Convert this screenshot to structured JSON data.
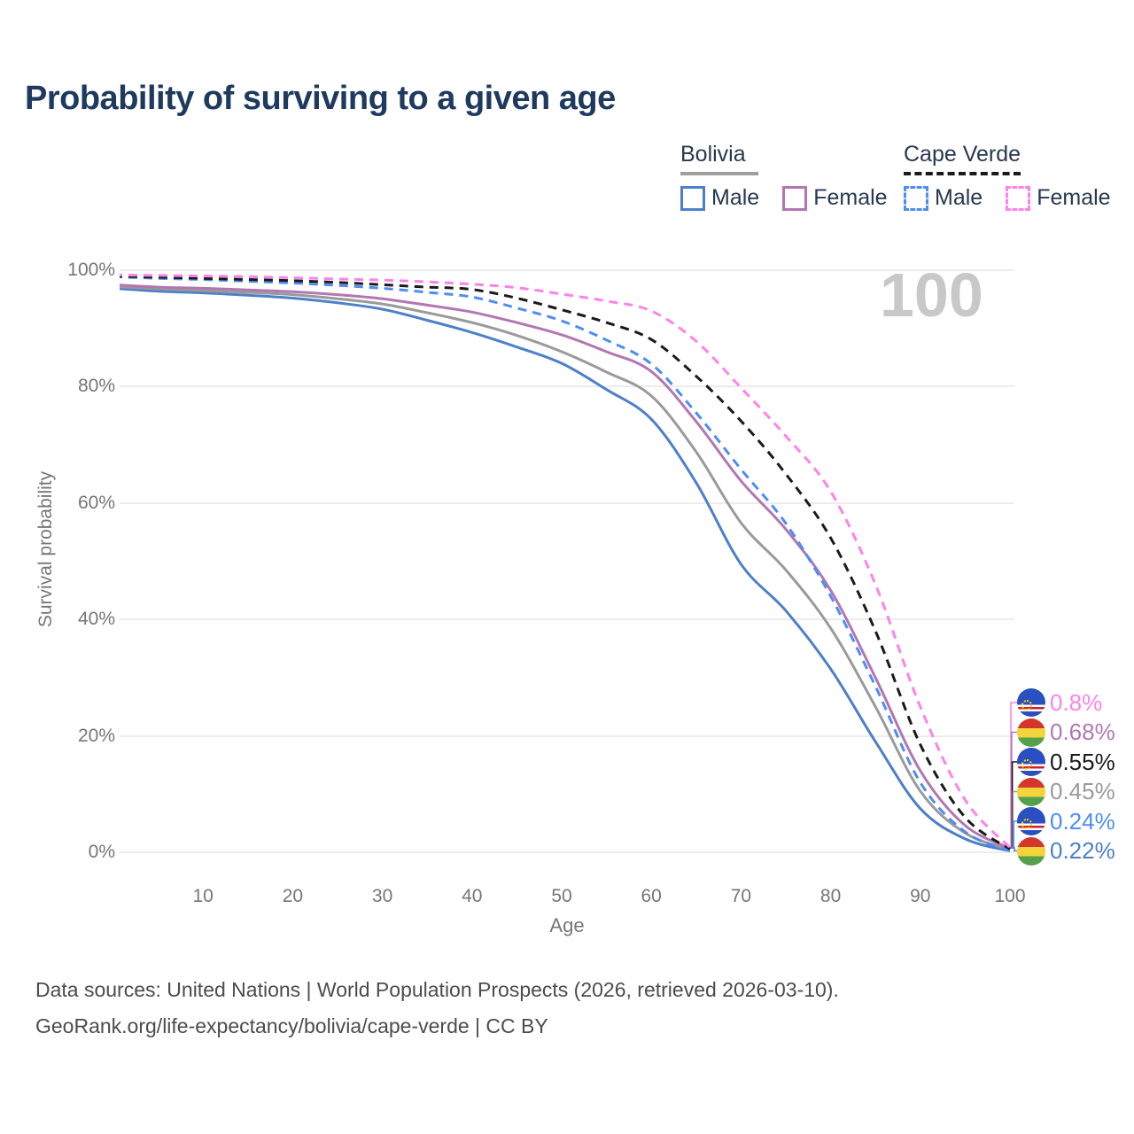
{
  "title": "Probability of surviving to a given age",
  "watermark": "100",
  "legend": {
    "groups": [
      {
        "header": "Bolivia",
        "underline_style": "solid",
        "underline_color": "#9e9e9e",
        "items": [
          {
            "label": "Male",
            "color": "#4d80c9",
            "dashed": false
          },
          {
            "label": "Female",
            "color": "#b277b2",
            "dashed": false
          }
        ]
      },
      {
        "header": "Cape Verde",
        "underline_style": "dashed",
        "underline_color": "#1a1a1a",
        "items": [
          {
            "label": "Male",
            "color": "#4d8df5",
            "dashed": true
          },
          {
            "label": "Female",
            "color": "#ff82e8",
            "dashed": true
          }
        ]
      }
    ]
  },
  "chart_data": {
    "type": "line",
    "title": "Probability of surviving to a given age",
    "xlabel": "Age",
    "ylabel": "Survival probability",
    "xlim": [
      0,
      100
    ],
    "ylim": [
      0,
      100
    ],
    "grid": "horizontal",
    "legend_position": "top-right",
    "x_ticks": [
      10,
      20,
      30,
      40,
      50,
      60,
      70,
      80,
      90,
      100
    ],
    "y_ticks": [
      "0%",
      "20%",
      "40%",
      "60%",
      "80%",
      "100%"
    ],
    "x": [
      0,
      5,
      10,
      15,
      20,
      25,
      30,
      35,
      40,
      45,
      50,
      55,
      60,
      65,
      70,
      75,
      80,
      85,
      90,
      95,
      100
    ],
    "series": [
      {
        "name": "Bolivia Male",
        "country": "Bolivia",
        "sex": "Male",
        "color": "#4d80c9",
        "dash": "solid",
        "values": [
          96.9,
          96.4,
          96.1,
          95.7,
          95.2,
          94.4,
          93.3,
          91.4,
          89.3,
          86.8,
          84.0,
          79.5,
          74.4,
          63.5,
          49.5,
          41.5,
          31.5,
          19.0,
          7.5,
          2.3,
          0.22
        ]
      },
      {
        "name": "Bolivia All",
        "country": "Bolivia",
        "sex": "All",
        "color": "#9a9a9a",
        "dash": "solid",
        "values": [
          97.2,
          96.8,
          96.5,
          96.2,
          95.8,
          95.1,
          94.2,
          92.7,
          91.0,
          88.8,
          86.0,
          82.5,
          78.4,
          68.8,
          56.6,
          48.5,
          38.5,
          25.0,
          10.5,
          3.3,
          0.45
        ]
      },
      {
        "name": "Bolivia Female",
        "country": "Bolivia",
        "sex": "Female",
        "color": "#b277b2",
        "dash": "solid",
        "values": [
          97.5,
          97.1,
          96.9,
          96.6,
          96.3,
          95.8,
          95.1,
          94.0,
          92.8,
          91.0,
          88.9,
          86.0,
          82.6,
          74.0,
          63.8,
          55.5,
          45.0,
          30.0,
          14.0,
          4.6,
          0.68
        ]
      },
      {
        "name": "Cape Verde Male",
        "country": "Cape Verde",
        "sex": "Male",
        "color": "#4d8df5",
        "dash": "dashed",
        "values": [
          98.9,
          98.6,
          98.4,
          98.1,
          97.8,
          97.4,
          96.9,
          96.2,
          95.4,
          93.5,
          91.3,
          88.0,
          83.9,
          75.5,
          65.8,
          56.5,
          44.0,
          28.5,
          12.0,
          3.5,
          0.24
        ]
      },
      {
        "name": "Cape Verde All",
        "country": "Cape Verde",
        "sex": "All",
        "color": "#1a1a1a",
        "dash": "dashed",
        "values": [
          99.0,
          98.8,
          98.6,
          98.4,
          98.2,
          97.9,
          97.5,
          97.1,
          96.7,
          95.2,
          93.2,
          91.0,
          88.1,
          81.8,
          74.1,
          65.0,
          54.0,
          38.0,
          18.5,
          6.0,
          0.55
        ]
      },
      {
        "name": "Cape Verde Female",
        "country": "Cape Verde",
        "sex": "Female",
        "color": "#ff82e8",
        "dash": "dashed",
        "values": [
          99.2,
          99.1,
          99.0,
          98.9,
          98.7,
          98.5,
          98.3,
          98.0,
          97.6,
          97.0,
          95.9,
          94.7,
          93.0,
          87.8,
          79.8,
          71.5,
          62.0,
          46.0,
          25.0,
          9.0,
          0.8
        ]
      }
    ]
  },
  "end_labels": [
    {
      "text": "0.8%",
      "color": "#ff82e8",
      "flag": "capeverde",
      "series": "Cape Verde Female"
    },
    {
      "text": "0.68%",
      "color": "#b277b2",
      "flag": "bolivia",
      "series": "Bolivia Female"
    },
    {
      "text": "0.55%",
      "color": "#1a1a1a",
      "flag": "capeverde",
      "series": "Cape Verde All"
    },
    {
      "text": "0.45%",
      "color": "#9a9a9a",
      "flag": "bolivia",
      "series": "Bolivia All"
    },
    {
      "text": "0.24%",
      "color": "#4d8df5",
      "flag": "capeverde",
      "series": "Cape Verde Male"
    },
    {
      "text": "0.22%",
      "color": "#4d80c9",
      "flag": "bolivia",
      "series": "Bolivia Male"
    }
  ],
  "footer": {
    "line1": "Data sources: United Nations | World Population Prospects (2026, retrieved 2026-03-10).",
    "line2": "GeoRank.org/life-expectancy/bolivia/cape-verde | CC BY"
  }
}
